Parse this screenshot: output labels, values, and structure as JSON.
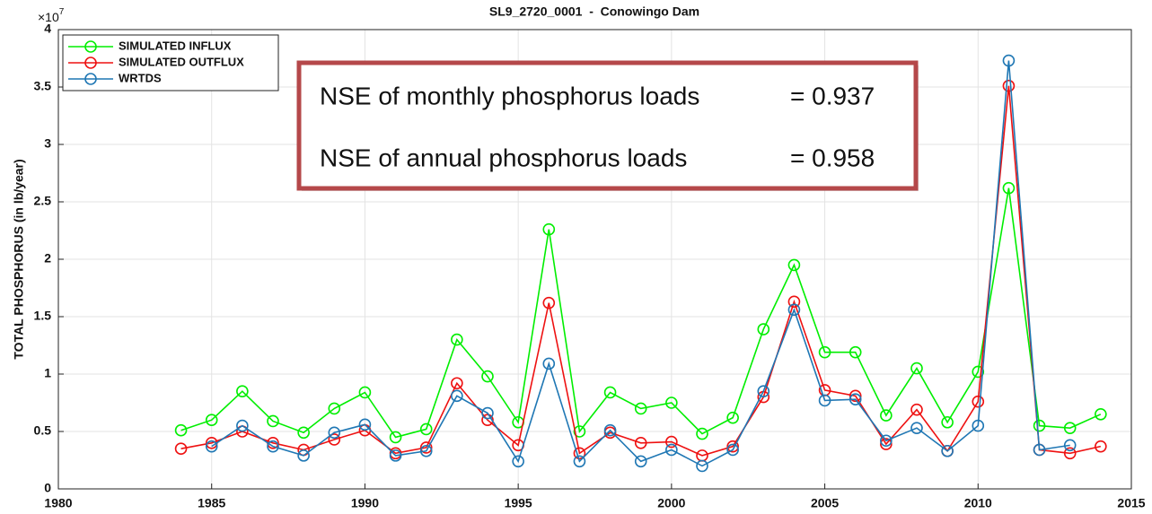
{
  "chart_data": {
    "type": "line",
    "title": "SL9_2720_0001  -  Conowingo Dam",
    "y_label": "TOTAL PHOSPHORUS (in lb/year)",
    "y_scale_base": "×10",
    "y_scale_exponent": "7",
    "x": [
      1984,
      1985,
      1986,
      1987,
      1988,
      1989,
      1990,
      1991,
      1992,
      1993,
      1994,
      1995,
      1996,
      1997,
      1998,
      1999,
      2000,
      2001,
      2002,
      2003,
      2004,
      2005,
      2006,
      2007,
      2008,
      2009,
      2010,
      2011,
      2012,
      2013,
      2014
    ],
    "series": [
      {
        "name": "SIMULATED INFLUX",
        "color": "#00ee00",
        "values": [
          0.51,
          0.6,
          0.85,
          0.59,
          0.49,
          0.7,
          0.84,
          0.45,
          0.52,
          1.3,
          0.98,
          0.58,
          2.26,
          0.5,
          0.84,
          0.7,
          0.75,
          0.48,
          0.62,
          1.39,
          1.95,
          1.19,
          1.19,
          0.64,
          1.05,
          0.58,
          1.02,
          2.62,
          0.55,
          0.53,
          0.65
        ]
      },
      {
        "name": "SIMULATED OUTFLUX",
        "color": "#ee1111",
        "values": [
          0.35,
          0.4,
          0.5,
          0.4,
          0.34,
          0.43,
          0.51,
          0.31,
          0.36,
          0.92,
          0.6,
          0.38,
          1.62,
          0.31,
          0.49,
          0.4,
          0.41,
          0.29,
          0.37,
          0.8,
          1.63,
          0.86,
          0.81,
          0.39,
          0.69,
          0.33,
          0.76,
          3.51,
          0.34,
          0.31,
          0.37
        ]
      },
      {
        "name": "WRTDS",
        "color": "#1f77b4",
        "values": [
          null,
          0.37,
          0.55,
          0.37,
          0.29,
          0.49,
          0.56,
          0.29,
          0.33,
          0.81,
          0.66,
          0.24,
          1.09,
          0.24,
          0.51,
          0.24,
          0.34,
          0.2,
          0.34,
          0.85,
          1.56,
          0.77,
          0.78,
          0.42,
          0.53,
          0.33,
          0.55,
          3.73,
          0.34,
          0.38,
          null
        ]
      }
    ],
    "xlim": [
      1980,
      2015
    ],
    "xticks": [
      1980,
      1985,
      1990,
      1995,
      2000,
      2005,
      2010,
      2015
    ],
    "ylim": [
      0,
      4
    ],
    "yticks": [
      0,
      0.5,
      1,
      1.5,
      2,
      2.5,
      3,
      3.5,
      4
    ],
    "grid": true,
    "legend": "upper-left",
    "annotations": [
      {
        "label": "NSE of monthly phosphorus loads",
        "value": "= 0.937"
      },
      {
        "label": "NSE of annual phosphorus loads",
        "value": "= 0.958"
      }
    ]
  }
}
